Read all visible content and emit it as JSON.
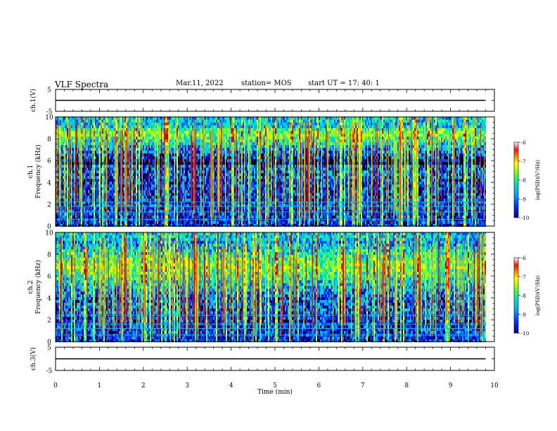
{
  "header": {
    "title": "VLF Spectra",
    "date": "Mar.11, 2022",
    "station": "station= MOS",
    "start": "start UT =   17: 40: 1"
  },
  "colors": {
    "background": "#000000",
    "colormap": [
      "#000020",
      "#0000c8",
      "#0050ff",
      "#00b4ff",
      "#00e6c8",
      "#32ff64",
      "#b4ff00",
      "#ffff00",
      "#ff9600",
      "#ff2000",
      "#c80000"
    ],
    "trace": "#000000"
  },
  "chart_data": [
    {
      "type": "line",
      "name": "ch1-voltage",
      "ylabel": "ch.1(V)",
      "ylim": [
        -5,
        5
      ],
      "yticks": [
        -5,
        5
      ],
      "x": [
        0,
        9.8
      ],
      "y": [
        0,
        0
      ]
    },
    {
      "type": "heatmap",
      "name": "ch1-spectrogram",
      "ylabel": "ch.1\nFrequency (kHz)",
      "xlim": [
        0,
        10
      ],
      "ylim": [
        0,
        10
      ],
      "yticks": [
        0,
        2,
        4,
        6,
        8,
        10
      ],
      "data_extent_min": 9.8,
      "band_kHz": [
        5.8,
        9.2
      ],
      "band_peak_kHz": 8.6,
      "lines_kHz": [
        0.6,
        1.3,
        1.8,
        2.2
      ],
      "colorbar": {
        "label": "log(PSD)(V²/Hz)",
        "range": [
          -10,
          -6
        ],
        "ticks": [
          -10,
          -9,
          -8,
          -7,
          -6
        ]
      }
    },
    {
      "type": "heatmap",
      "name": "ch2-spectrogram",
      "ylabel": "ch.2\nFrequency (kHz)",
      "xlim": [
        0,
        10
      ],
      "ylim": [
        0,
        10
      ],
      "yticks": [
        0,
        2,
        4,
        6,
        8,
        10
      ],
      "data_extent_min": 9.8,
      "band_kHz": [
        4.0,
        9.4
      ],
      "band_peak_kHz": 7.0,
      "lines_kHz": [
        0.6,
        1.2,
        1.6,
        2.4
      ],
      "colorbar": {
        "label": "log(PSD)(V²/Hz)",
        "range": [
          -10,
          -6
        ],
        "ticks": [
          -10,
          -9,
          -8,
          -7,
          -6
        ]
      }
    },
    {
      "type": "line",
      "name": "ch3-voltage",
      "ylabel": "ch.3(V)",
      "ylim": [
        -5,
        5
      ],
      "yticks": [
        -5,
        5
      ],
      "x": [
        0,
        9.8
      ],
      "y": [
        0,
        0
      ]
    }
  ],
  "xaxis": {
    "label": "Time (min)",
    "ticks": [
      0,
      1,
      2,
      3,
      4,
      5,
      6,
      7,
      8,
      9,
      10
    ],
    "range": [
      0,
      10
    ]
  }
}
